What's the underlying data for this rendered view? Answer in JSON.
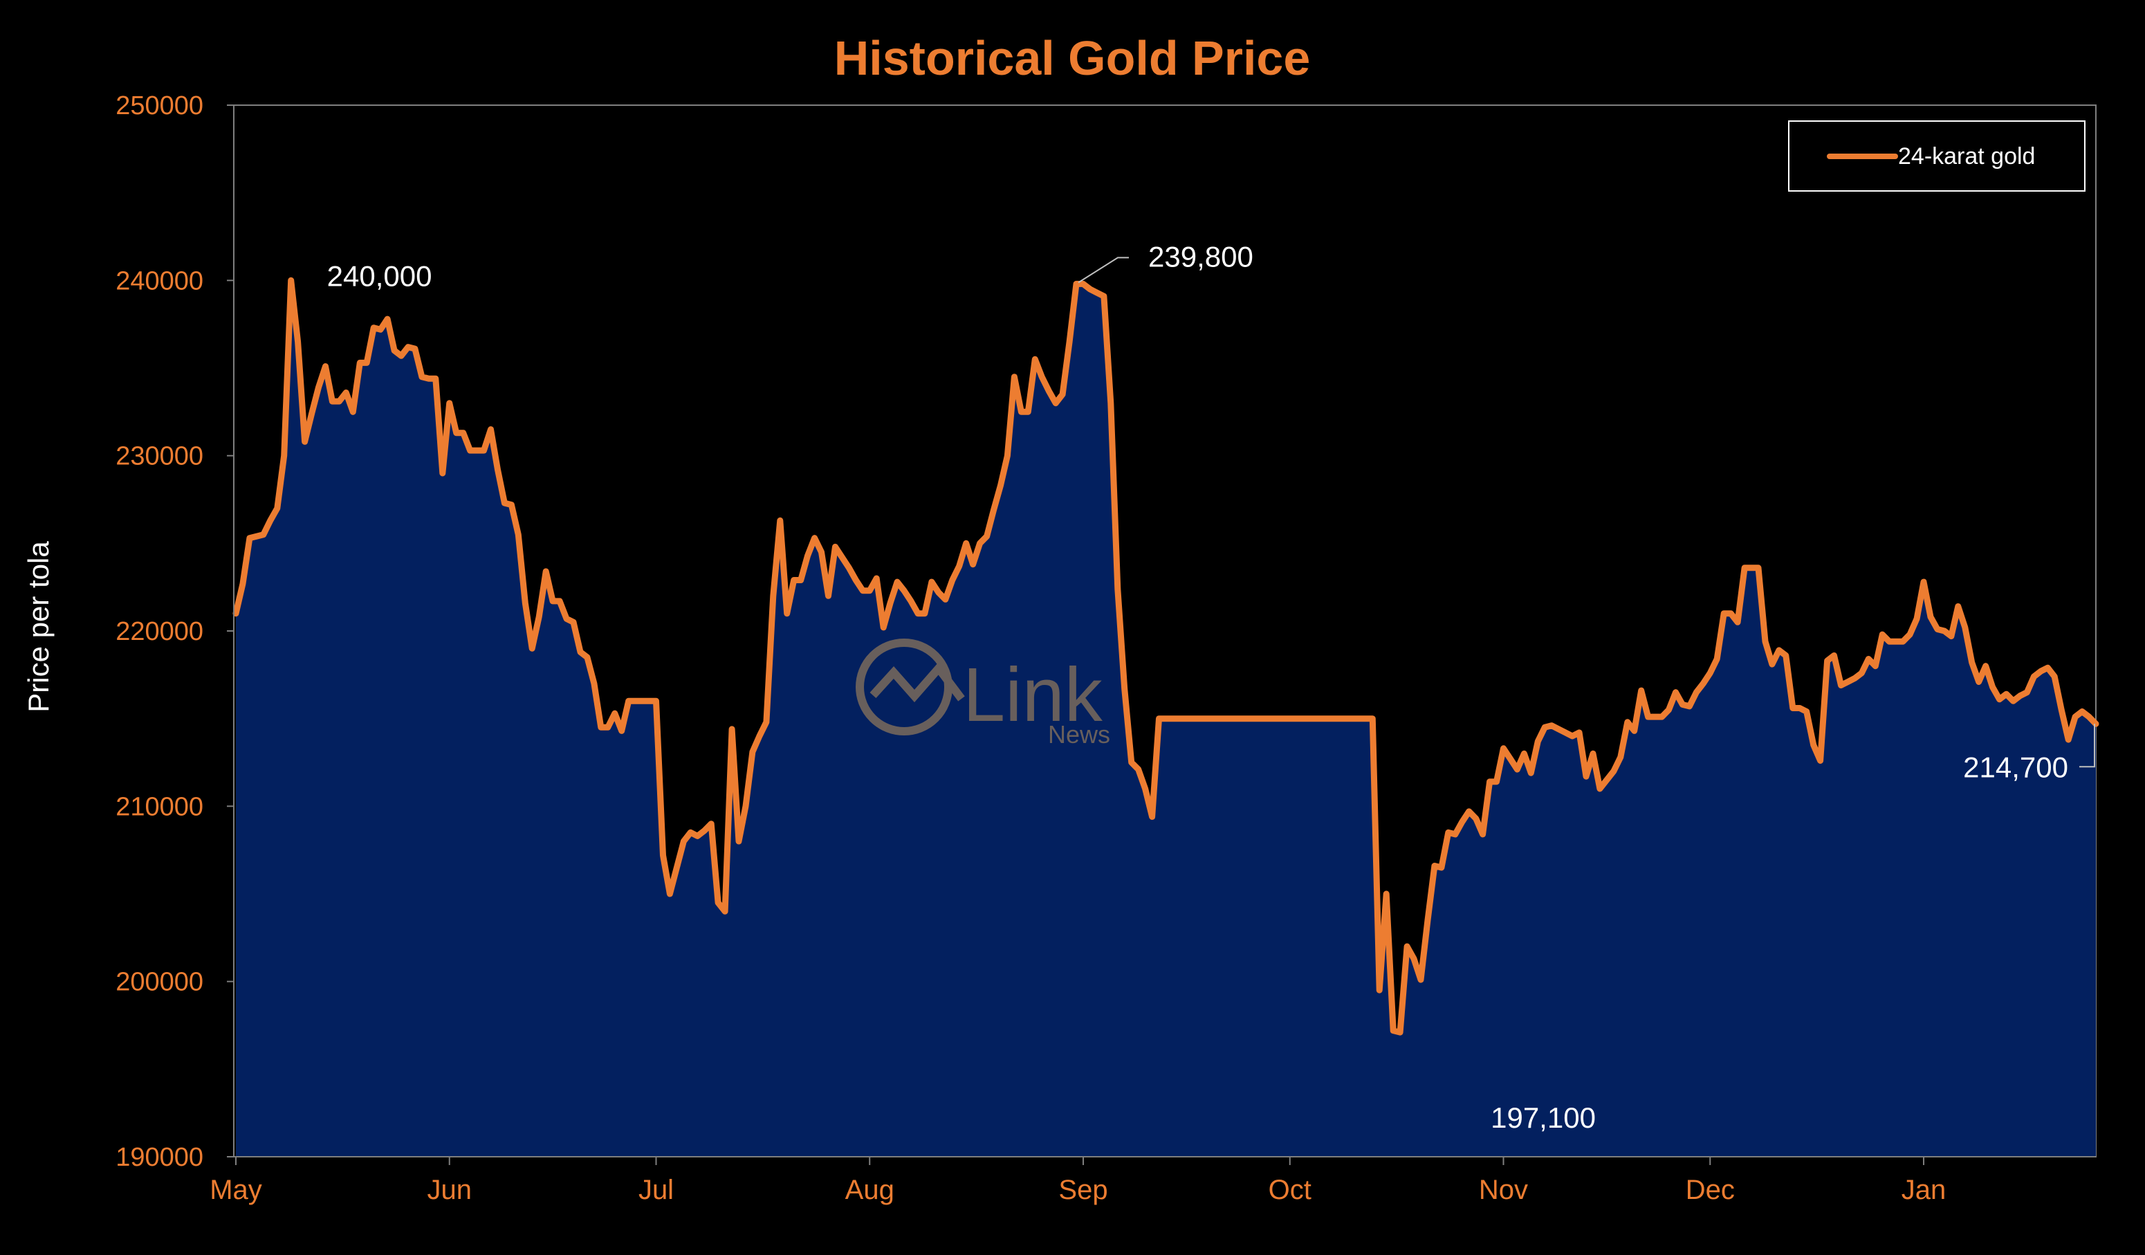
{
  "chart_data": {
    "type": "area",
    "title": "Historical Gold Price",
    "ylabel": "Price per tola",
    "xlabel": "",
    "ylim": [
      190000,
      250000
    ],
    "yticks": [
      190000,
      200000,
      210000,
      220000,
      230000,
      240000,
      250000
    ],
    "ytick_labels": [
      "190000",
      "200000",
      "210000",
      "220000",
      "230000",
      "240000",
      "250000"
    ],
    "xlim": [
      0,
      262
    ],
    "xticks": [
      {
        "label": "May",
        "x": 0
      },
      {
        "label": "Jun",
        "x": 31
      },
      {
        "label": "Jul",
        "x": 61
      },
      {
        "label": "Aug",
        "x": 92
      },
      {
        "label": "Sep",
        "x": 123
      },
      {
        "label": "Oct",
        "x": 153
      },
      {
        "label": "Nov",
        "x": 184
      },
      {
        "label": "Dec",
        "x": 214
      },
      {
        "label": "Jan",
        "x": 245
      }
    ],
    "grid": false,
    "legend_position": "top-right",
    "series": [
      {
        "name": "24-karat gold",
        "color": "#ED7D31",
        "fill": "#03205F",
        "points": [
          [
            0,
            221000
          ],
          [
            1,
            222700
          ],
          [
            2,
            225300
          ],
          [
            3,
            225400
          ],
          [
            4,
            225500
          ],
          [
            5,
            226300
          ],
          [
            6,
            227000
          ],
          [
            7,
            230000
          ],
          [
            8,
            240000
          ],
          [
            9,
            236500
          ],
          [
            10,
            230800
          ],
          [
            11,
            232400
          ],
          [
            12,
            233900
          ],
          [
            13,
            235100
          ],
          [
            14,
            233100
          ],
          [
            15,
            233100
          ],
          [
            16,
            233600
          ],
          [
            17,
            232500
          ],
          [
            18,
            235300
          ],
          [
            19,
            235300
          ],
          [
            20,
            237300
          ],
          [
            21,
            237200
          ],
          [
            22,
            237800
          ],
          [
            23,
            236000
          ],
          [
            24,
            235700
          ],
          [
            25,
            236200
          ],
          [
            26,
            236100
          ],
          [
            27,
            234500
          ],
          [
            28,
            234400
          ],
          [
            29,
            234400
          ],
          [
            30,
            229000
          ],
          [
            31,
            233000
          ],
          [
            32,
            231300
          ],
          [
            33,
            231300
          ],
          [
            34,
            230300
          ],
          [
            35,
            230300
          ],
          [
            36,
            230300
          ],
          [
            37,
            231500
          ],
          [
            38,
            229200
          ],
          [
            39,
            227300
          ],
          [
            40,
            227200
          ],
          [
            41,
            225500
          ],
          [
            42,
            221600
          ],
          [
            43,
            219000
          ],
          [
            44,
            220800
          ],
          [
            45,
            223400
          ],
          [
            46,
            221700
          ],
          [
            47,
            221700
          ],
          [
            48,
            220700
          ],
          [
            49,
            220500
          ],
          [
            50,
            218800
          ],
          [
            51,
            218500
          ],
          [
            52,
            217000
          ],
          [
            53,
            214500
          ],
          [
            54,
            214500
          ],
          [
            55,
            215300
          ],
          [
            56,
            214300
          ],
          [
            57,
            216000
          ],
          [
            58,
            216000
          ],
          [
            59,
            216000
          ],
          [
            60,
            216000
          ],
          [
            61,
            216000
          ],
          [
            62,
            207200
          ],
          [
            63,
            205000
          ],
          [
            64,
            206500
          ],
          [
            65,
            208000
          ],
          [
            66,
            208500
          ],
          [
            67,
            208300
          ],
          [
            68,
            208600
          ],
          [
            69,
            209000
          ],
          [
            70,
            204500
          ],
          [
            71,
            204000
          ],
          [
            72,
            214400
          ],
          [
            73,
            208000
          ],
          [
            74,
            210000
          ],
          [
            75,
            213100
          ],
          [
            76,
            214000
          ],
          [
            77,
            214800
          ],
          [
            78,
            222000
          ],
          [
            79,
            226300
          ],
          [
            80,
            221000
          ],
          [
            81,
            222900
          ],
          [
            82,
            222900
          ],
          [
            83,
            224300
          ],
          [
            84,
            225300
          ],
          [
            85,
            224500
          ],
          [
            86,
            222000
          ],
          [
            87,
            224800
          ],
          [
            88,
            224200
          ],
          [
            89,
            223600
          ],
          [
            90,
            222900
          ],
          [
            91,
            222300
          ],
          [
            92,
            222300
          ],
          [
            93,
            223000
          ],
          [
            94,
            220200
          ],
          [
            95,
            221600
          ],
          [
            96,
            222800
          ],
          [
            97,
            222300
          ],
          [
            98,
            221700
          ],
          [
            99,
            221000
          ],
          [
            100,
            221000
          ],
          [
            101,
            222800
          ],
          [
            102,
            222200
          ],
          [
            103,
            221800
          ],
          [
            104,
            222900
          ],
          [
            105,
            223700
          ],
          [
            106,
            225000
          ],
          [
            107,
            223800
          ],
          [
            108,
            225000
          ],
          [
            109,
            225400
          ],
          [
            110,
            226900
          ],
          [
            111,
            228300
          ],
          [
            112,
            230000
          ],
          [
            113,
            234500
          ],
          [
            114,
            232500
          ],
          [
            115,
            232500
          ],
          [
            116,
            235500
          ],
          [
            117,
            234500
          ],
          [
            118,
            233700
          ],
          [
            119,
            233000
          ],
          [
            120,
            233500
          ],
          [
            121,
            236500
          ],
          [
            122,
            239800
          ],
          [
            123,
            239800
          ],
          [
            124,
            239500
          ],
          [
            125,
            239300
          ],
          [
            126,
            239100
          ],
          [
            127,
            233000
          ],
          [
            128,
            222400
          ],
          [
            129,
            216700
          ],
          [
            130,
            212500
          ],
          [
            131,
            212100
          ],
          [
            132,
            211000
          ],
          [
            133,
            209400
          ],
          [
            134,
            215000
          ],
          [
            135,
            215000
          ],
          [
            136,
            215000
          ],
          [
            137,
            215000
          ],
          [
            138,
            215000
          ],
          [
            139,
            215000
          ],
          [
            140,
            215000
          ],
          [
            141,
            215000
          ],
          [
            142,
            215000
          ],
          [
            143,
            215000
          ],
          [
            144,
            215000
          ],
          [
            145,
            215000
          ],
          [
            146,
            215000
          ],
          [
            147,
            215000
          ],
          [
            148,
            215000
          ],
          [
            149,
            215000
          ],
          [
            150,
            215000
          ],
          [
            151,
            215000
          ],
          [
            152,
            215000
          ],
          [
            153,
            215000
          ],
          [
            154,
            215000
          ],
          [
            155,
            215000
          ],
          [
            156,
            215000
          ],
          [
            157,
            215000
          ],
          [
            158,
            215000
          ],
          [
            159,
            215000
          ],
          [
            160,
            215000
          ],
          [
            161,
            215000
          ],
          [
            162,
            215000
          ],
          [
            163,
            215000
          ],
          [
            164,
            215000
          ],
          [
            165,
            215000
          ],
          [
            166,
            199500
          ],
          [
            167,
            205000
          ],
          [
            168,
            197200
          ],
          [
            169,
            197100
          ],
          [
            170,
            202000
          ],
          [
            171,
            201300
          ],
          [
            172,
            200100
          ],
          [
            173,
            203500
          ],
          [
            174,
            206600
          ],
          [
            175,
            206500
          ],
          [
            176,
            208500
          ],
          [
            177,
            208400
          ],
          [
            178,
            209100
          ],
          [
            179,
            209700
          ],
          [
            180,
            209300
          ],
          [
            181,
            208400
          ],
          [
            182,
            211400
          ],
          [
            183,
            211400
          ],
          [
            184,
            213300
          ],
          [
            185,
            212700
          ],
          [
            186,
            212100
          ],
          [
            187,
            213000
          ],
          [
            188,
            211900
          ],
          [
            189,
            213700
          ],
          [
            190,
            214500
          ],
          [
            191,
            214600
          ],
          [
            192,
            214400
          ],
          [
            193,
            214200
          ],
          [
            194,
            214000
          ],
          [
            195,
            214200
          ],
          [
            196,
            211700
          ],
          [
            197,
            213000
          ],
          [
            198,
            211000
          ],
          [
            199,
            211500
          ],
          [
            200,
            212000
          ],
          [
            201,
            212800
          ],
          [
            202,
            214800
          ],
          [
            203,
            214300
          ],
          [
            204,
            216600
          ],
          [
            205,
            215100
          ],
          [
            206,
            215100
          ],
          [
            207,
            215100
          ],
          [
            208,
            215500
          ],
          [
            209,
            216500
          ],
          [
            210,
            215800
          ],
          [
            211,
            215700
          ],
          [
            212,
            216500
          ],
          [
            213,
            217000
          ],
          [
            214,
            217600
          ],
          [
            215,
            218400
          ],
          [
            216,
            221000
          ],
          [
            217,
            221000
          ],
          [
            218,
            220500
          ],
          [
            219,
            223600
          ],
          [
            220,
            223600
          ],
          [
            221,
            223600
          ],
          [
            222,
            219400
          ],
          [
            223,
            218100
          ],
          [
            224,
            218900
          ],
          [
            225,
            218600
          ],
          [
            226,
            215600
          ],
          [
            227,
            215600
          ],
          [
            228,
            215400
          ],
          [
            229,
            213500
          ],
          [
            230,
            212600
          ],
          [
            231,
            218300
          ],
          [
            232,
            218600
          ],
          [
            233,
            216900
          ],
          [
            234,
            217100
          ],
          [
            235,
            217300
          ],
          [
            236,
            217600
          ],
          [
            237,
            218400
          ],
          [
            238,
            218000
          ],
          [
            239,
            219800
          ],
          [
            240,
            219400
          ],
          [
            241,
            219400
          ],
          [
            242,
            219400
          ],
          [
            243,
            219800
          ],
          [
            244,
            220700
          ],
          [
            245,
            222800
          ],
          [
            246,
            220800
          ],
          [
            247,
            220100
          ],
          [
            248,
            220000
          ],
          [
            249,
            219700
          ],
          [
            250,
            221400
          ],
          [
            251,
            220200
          ],
          [
            252,
            218200
          ],
          [
            253,
            217100
          ],
          [
            254,
            218000
          ],
          [
            255,
            216800
          ],
          [
            256,
            216100
          ],
          [
            257,
            216400
          ],
          [
            258,
            216000
          ],
          [
            259,
            216300
          ],
          [
            260,
            216500
          ],
          [
            261,
            217400
          ],
          [
            262,
            217700
          ],
          [
            263,
            217900
          ],
          [
            264,
            217400
          ],
          [
            265,
            215500
          ],
          [
            266,
            213800
          ],
          [
            267,
            215100
          ],
          [
            268,
            215400
          ],
          [
            269,
            215100
          ],
          [
            270,
            214700
          ]
        ]
      }
    ],
    "annotations": [
      {
        "text": "240,000",
        "x": 8,
        "y": 240000
      },
      {
        "text": "239,800",
        "x": 122,
        "y": 239800
      },
      {
        "text": "197,100",
        "x": 169,
        "y": 197100
      },
      {
        "text": "214,700",
        "x": 270,
        "y": 214700
      }
    ]
  },
  "watermark": {
    "text": "Link",
    "sub": "News"
  }
}
